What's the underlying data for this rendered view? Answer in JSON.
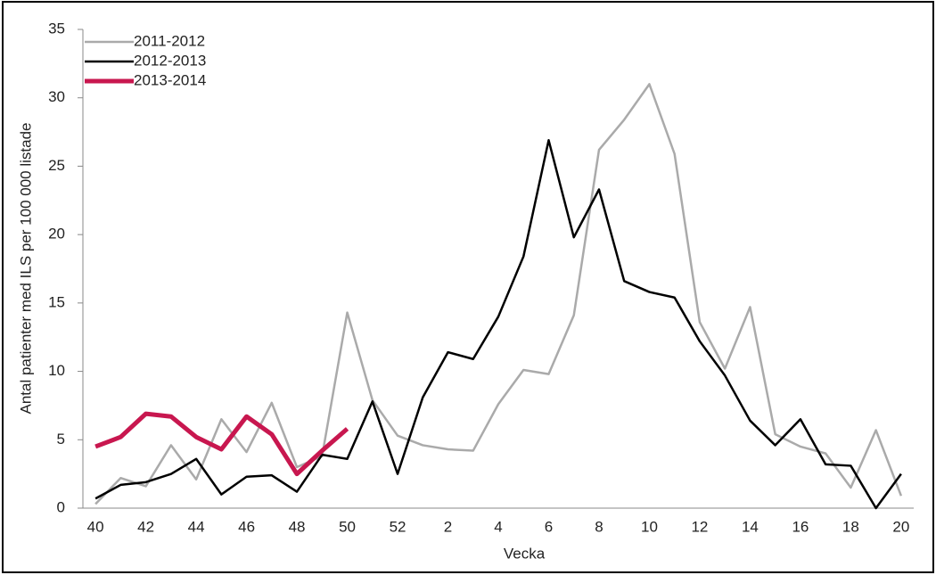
{
  "chart_data": {
    "type": "line",
    "x_label": "Vecka",
    "y_label": "Antal patienter med ILS per 100 000 listade",
    "categories": [
      40,
      null,
      42,
      null,
      44,
      null,
      46,
      null,
      48,
      null,
      50,
      null,
      52,
      null,
      2,
      null,
      4,
      null,
      6,
      null,
      8,
      null,
      10,
      null,
      12,
      null,
      14,
      null,
      16,
      null,
      18,
      null,
      20
    ],
    "series": [
      {
        "name": "2011-2012",
        "color": "#aaaaaa",
        "width": 2.5,
        "values": [
          0.3,
          2.2,
          1.6,
          4.6,
          2.1,
          6.5,
          4.1,
          7.7,
          3.0,
          3.8,
          14.3,
          7.9,
          5.3,
          4.6,
          4.3,
          4.2,
          7.6,
          10.1,
          9.8,
          14.1,
          26.2,
          28.4,
          31.0,
          25.9,
          13.6,
          10.2,
          14.7,
          5.4,
          4.5,
          4.0,
          1.5,
          5.7,
          0.9
        ]
      },
      {
        "name": "2012-2013",
        "color": "#000000",
        "width": 2.5,
        "values": [
          0.7,
          1.7,
          1.9,
          2.5,
          3.6,
          1.0,
          2.3,
          2.4,
          1.2,
          3.9,
          3.6,
          7.8,
          2.5,
          8.1,
          11.4,
          10.9,
          14.0,
          18.4,
          26.9,
          19.8,
          23.3,
          16.6,
          15.8,
          15.4,
          12.2,
          9.7,
          6.4,
          4.6,
          6.5,
          3.2,
          3.1,
          0.0,
          2.5
        ]
      },
      {
        "name": "2013-2014",
        "color": "#c8174f",
        "width": 5,
        "values": [
          4.5,
          5.2,
          6.9,
          6.7,
          5.2,
          4.3,
          6.7,
          5.4,
          2.5,
          4.2,
          5.8,
          null,
          null,
          null,
          null,
          null,
          null,
          null,
          null,
          null,
          null,
          null,
          null,
          null,
          null,
          null,
          null,
          null,
          null,
          null,
          null,
          null,
          null
        ]
      }
    ],
    "ylim": [
      0,
      35
    ],
    "yticks": [
      0,
      5,
      10,
      15,
      20,
      25,
      30,
      35
    ],
    "grid": false,
    "legend": "upper left"
  }
}
